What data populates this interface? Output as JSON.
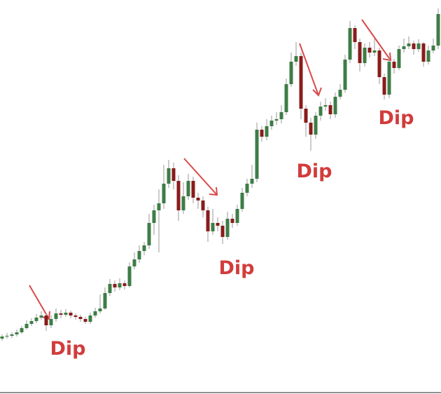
{
  "chart_data": {
    "type": "candlestick",
    "open": [
      77,
      80,
      81,
      83,
      86,
      92,
      98,
      102,
      107,
      110,
      96,
      105,
      113,
      111,
      114,
      110,
      108,
      105,
      101,
      110,
      116,
      120,
      142,
      155,
      150,
      156,
      152,
      180,
      190,
      202,
      210,
      242,
      260,
      270,
      298,
      320,
      302,
      260,
      280,
      302,
      278,
      274,
      260,
      230,
      242,
      238,
      222,
      248,
      242,
      262,
      285,
      298,
      305,
      375,
      365,
      380,
      388,
      390,
      400,
      440,
      472,
      480,
      405,
      385,
      368,
      395,
      408,
      410,
      397,
      422,
      432,
      475,
      520,
      500,
      470,
      492,
      485,
      488,
      450,
      425,
      472,
      463,
      490,
      494,
      498,
      490,
      498,
      472,
      488,
      495
    ],
    "high": [
      83,
      85,
      86,
      90,
      95,
      103,
      106,
      112,
      116,
      113,
      110,
      120,
      118,
      119,
      117,
      113,
      111,
      108,
      114,
      121,
      140,
      150,
      162,
      160,
      163,
      160,
      186,
      200,
      210,
      215,
      255,
      268,
      290,
      325,
      332,
      328,
      310,
      300,
      312,
      308,
      285,
      280,
      265,
      262,
      250,
      245,
      258,
      255,
      268,
      292,
      305,
      325,
      385,
      380,
      390,
      395,
      400,
      410,
      448,
      485,
      500,
      485,
      410,
      392,
      400,
      415,
      420,
      415,
      428,
      440,
      482,
      530,
      524,
      505,
      498,
      500,
      505,
      492,
      455,
      478,
      476,
      495,
      505,
      508,
      502,
      504,
      500,
      495,
      505,
      548
    ],
    "low": [
      74,
      77,
      78,
      80,
      84,
      90,
      95,
      99,
      104,
      88,
      92,
      101,
      106,
      108,
      106,
      104,
      101,
      98,
      98,
      107,
      113,
      118,
      138,
      144,
      146,
      147,
      150,
      176,
      185,
      196,
      205,
      225,
      200,
      262,
      292,
      290,
      245,
      255,
      275,
      270,
      262,
      250,
      215,
      225,
      230,
      212,
      218,
      235,
      238,
      258,
      280,
      292,
      300,
      358,
      360,
      375,
      382,
      384,
      396,
      436,
      466,
      390,
      365,
      345,
      362,
      388,
      402,
      390,
      392,
      418,
      428,
      470,
      490,
      458,
      465,
      478,
      480,
      440,
      418,
      420,
      455,
      460,
      485,
      490,
      482,
      486,
      465,
      468,
      484,
      490
    ],
    "close": [
      80,
      81,
      83,
      86,
      92,
      98,
      102,
      107,
      110,
      96,
      105,
      113,
      111,
      114,
      110,
      108,
      105,
      101,
      110,
      116,
      120,
      142,
      155,
      150,
      156,
      152,
      180,
      190,
      202,
      210,
      242,
      260,
      270,
      298,
      320,
      302,
      260,
      280,
      302,
      278,
      274,
      260,
      230,
      242,
      238,
      222,
      248,
      242,
      262,
      285,
      298,
      305,
      375,
      365,
      380,
      388,
      390,
      400,
      440,
      472,
      480,
      405,
      385,
      368,
      395,
      408,
      410,
      397,
      422,
      432,
      475,
      520,
      500,
      470,
      492,
      485,
      488,
      450,
      425,
      472,
      463,
      490,
      494,
      498,
      490,
      498,
      472,
      488,
      495,
      540
    ],
    "up_color": "#3d7d46",
    "down_color": "#8a1c1c",
    "annotations": [
      "Dip",
      "Dip",
      "Dip",
      "Dip"
    ]
  }
}
